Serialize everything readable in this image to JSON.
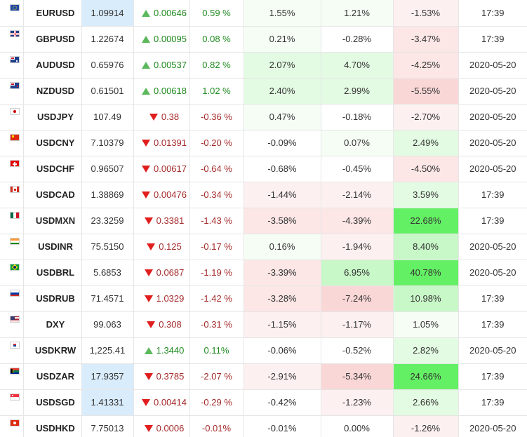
{
  "colors": {
    "up_arrow": "#5cb85c",
    "down_arrow": "#e01e1e",
    "positive_text": "#1f8a1f",
    "negative_text": "#a52a2a",
    "highlight": "#d9ecfb"
  },
  "rows": [
    {
      "flag_icon": "eu-flag-icon",
      "symbol": "EURUSD",
      "price": "1.09914",
      "price_hl": true,
      "dir": "up",
      "change": "0.00646",
      "pct": "0.59 %",
      "perf1": "1.55%",
      "perf2": "1.21%",
      "perf3": "-1.53%",
      "time": "17:39"
    },
    {
      "flag_icon": "gb-flag-icon",
      "symbol": "GBPUSD",
      "price": "1.22674",
      "price_hl": false,
      "dir": "up",
      "change": "0.00095",
      "pct": "0.08 %",
      "perf1": "0.21%",
      "perf2": "-0.28%",
      "perf3": "-3.47%",
      "time": "17:39"
    },
    {
      "flag_icon": "au-flag-icon",
      "symbol": "AUDUSD",
      "price": "0.65976",
      "price_hl": false,
      "dir": "up",
      "change": "0.00537",
      "pct": "0.82 %",
      "perf1": "2.07%",
      "perf2": "4.70%",
      "perf3": "-4.25%",
      "time": "2020-05-20"
    },
    {
      "flag_icon": "nz-flag-icon",
      "symbol": "NZDUSD",
      "price": "0.61501",
      "price_hl": false,
      "dir": "up",
      "change": "0.00618",
      "pct": "1.02 %",
      "perf1": "2.40%",
      "perf2": "2.99%",
      "perf3": "-5.55%",
      "time": "2020-05-20"
    },
    {
      "flag_icon": "jp-flag-icon",
      "symbol": "USDJPY",
      "price": "107.49",
      "price_hl": false,
      "dir": "down",
      "change": "0.38",
      "pct": "-0.36 %",
      "perf1": "0.47%",
      "perf2": "-0.18%",
      "perf3": "-2.70%",
      "time": "2020-05-20"
    },
    {
      "flag_icon": "cn-flag-icon",
      "symbol": "USDCNY",
      "price": "7.10379",
      "price_hl": false,
      "dir": "down",
      "change": "0.01391",
      "pct": "-0.20 %",
      "perf1": "-0.09%",
      "perf2": "0.07%",
      "perf3": "2.49%",
      "time": "2020-05-20"
    },
    {
      "flag_icon": "ch-flag-icon",
      "symbol": "USDCHF",
      "price": "0.96507",
      "price_hl": false,
      "dir": "down",
      "change": "0.00617",
      "pct": "-0.64 %",
      "perf1": "-0.68%",
      "perf2": "-0.45%",
      "perf3": "-4.50%",
      "time": "2020-05-20"
    },
    {
      "flag_icon": "ca-flag-icon",
      "symbol": "USDCAD",
      "price": "1.38869",
      "price_hl": false,
      "dir": "down",
      "change": "0.00476",
      "pct": "-0.34 %",
      "perf1": "-1.44%",
      "perf2": "-2.14%",
      "perf3": "3.59%",
      "time": "17:39"
    },
    {
      "flag_icon": "mx-flag-icon",
      "symbol": "USDMXN",
      "price": "23.3259",
      "price_hl": false,
      "dir": "down",
      "change": "0.3381",
      "pct": "-1.43 %",
      "perf1": "-3.58%",
      "perf2": "-4.39%",
      "perf3": "22.68%",
      "time": "17:39"
    },
    {
      "flag_icon": "in-flag-icon",
      "symbol": "USDINR",
      "price": "75.5150",
      "price_hl": false,
      "dir": "down",
      "change": "0.125",
      "pct": "-0.17 %",
      "perf1": "0.16%",
      "perf2": "-1.94%",
      "perf3": "8.40%",
      "time": "2020-05-20"
    },
    {
      "flag_icon": "br-flag-icon",
      "symbol": "USDBRL",
      "price": "5.6853",
      "price_hl": false,
      "dir": "down",
      "change": "0.0687",
      "pct": "-1.19 %",
      "perf1": "-3.39%",
      "perf2": "6.95%",
      "perf3": "40.78%",
      "time": "2020-05-20"
    },
    {
      "flag_icon": "ru-flag-icon",
      "symbol": "USDRUB",
      "price": "71.4571",
      "price_hl": false,
      "dir": "down",
      "change": "1.0329",
      "pct": "-1.42 %",
      "perf1": "-3.28%",
      "perf2": "-7.24%",
      "perf3": "10.98%",
      "time": "17:39"
    },
    {
      "flag_icon": "us-flag-icon",
      "symbol": "DXY",
      "price": "99.063",
      "price_hl": false,
      "dir": "down",
      "change": "0.308",
      "pct": "-0.31 %",
      "perf1": "-1.15%",
      "perf2": "-1.17%",
      "perf3": "1.05%",
      "time": "17:39"
    },
    {
      "flag_icon": "kr-flag-icon",
      "symbol": "USDKRW",
      "price": "1,225.41",
      "price_hl": false,
      "dir": "up",
      "change": "1.3440",
      "pct": "0.11%",
      "perf1": "-0.06%",
      "perf2": "-0.52%",
      "perf3": "2.82%",
      "time": "2020-05-20"
    },
    {
      "flag_icon": "za-flag-icon",
      "symbol": "USDZAR",
      "price": "17.9357",
      "price_hl": true,
      "dir": "down",
      "change": "0.3785",
      "pct": "-2.07 %",
      "perf1": "-2.91%",
      "perf2": "-5.34%",
      "perf3": "24.66%",
      "time": "17:39"
    },
    {
      "flag_icon": "sg-flag-icon",
      "symbol": "USDSGD",
      "price": "1.41331",
      "price_hl": true,
      "dir": "down",
      "change": "0.00414",
      "pct": "-0.29 %",
      "perf1": "-0.42%",
      "perf2": "-1.23%",
      "perf3": "2.66%",
      "time": "17:39"
    },
    {
      "flag_icon": "hk-flag-icon",
      "symbol": "USDHKD",
      "price": "7.75013",
      "price_hl": false,
      "dir": "down",
      "change": "0.0006",
      "pct": "-0.01%",
      "perf1": "-0.01%",
      "perf2": "0.00%",
      "perf3": "-1.26%",
      "time": "2020-05-20"
    }
  ]
}
